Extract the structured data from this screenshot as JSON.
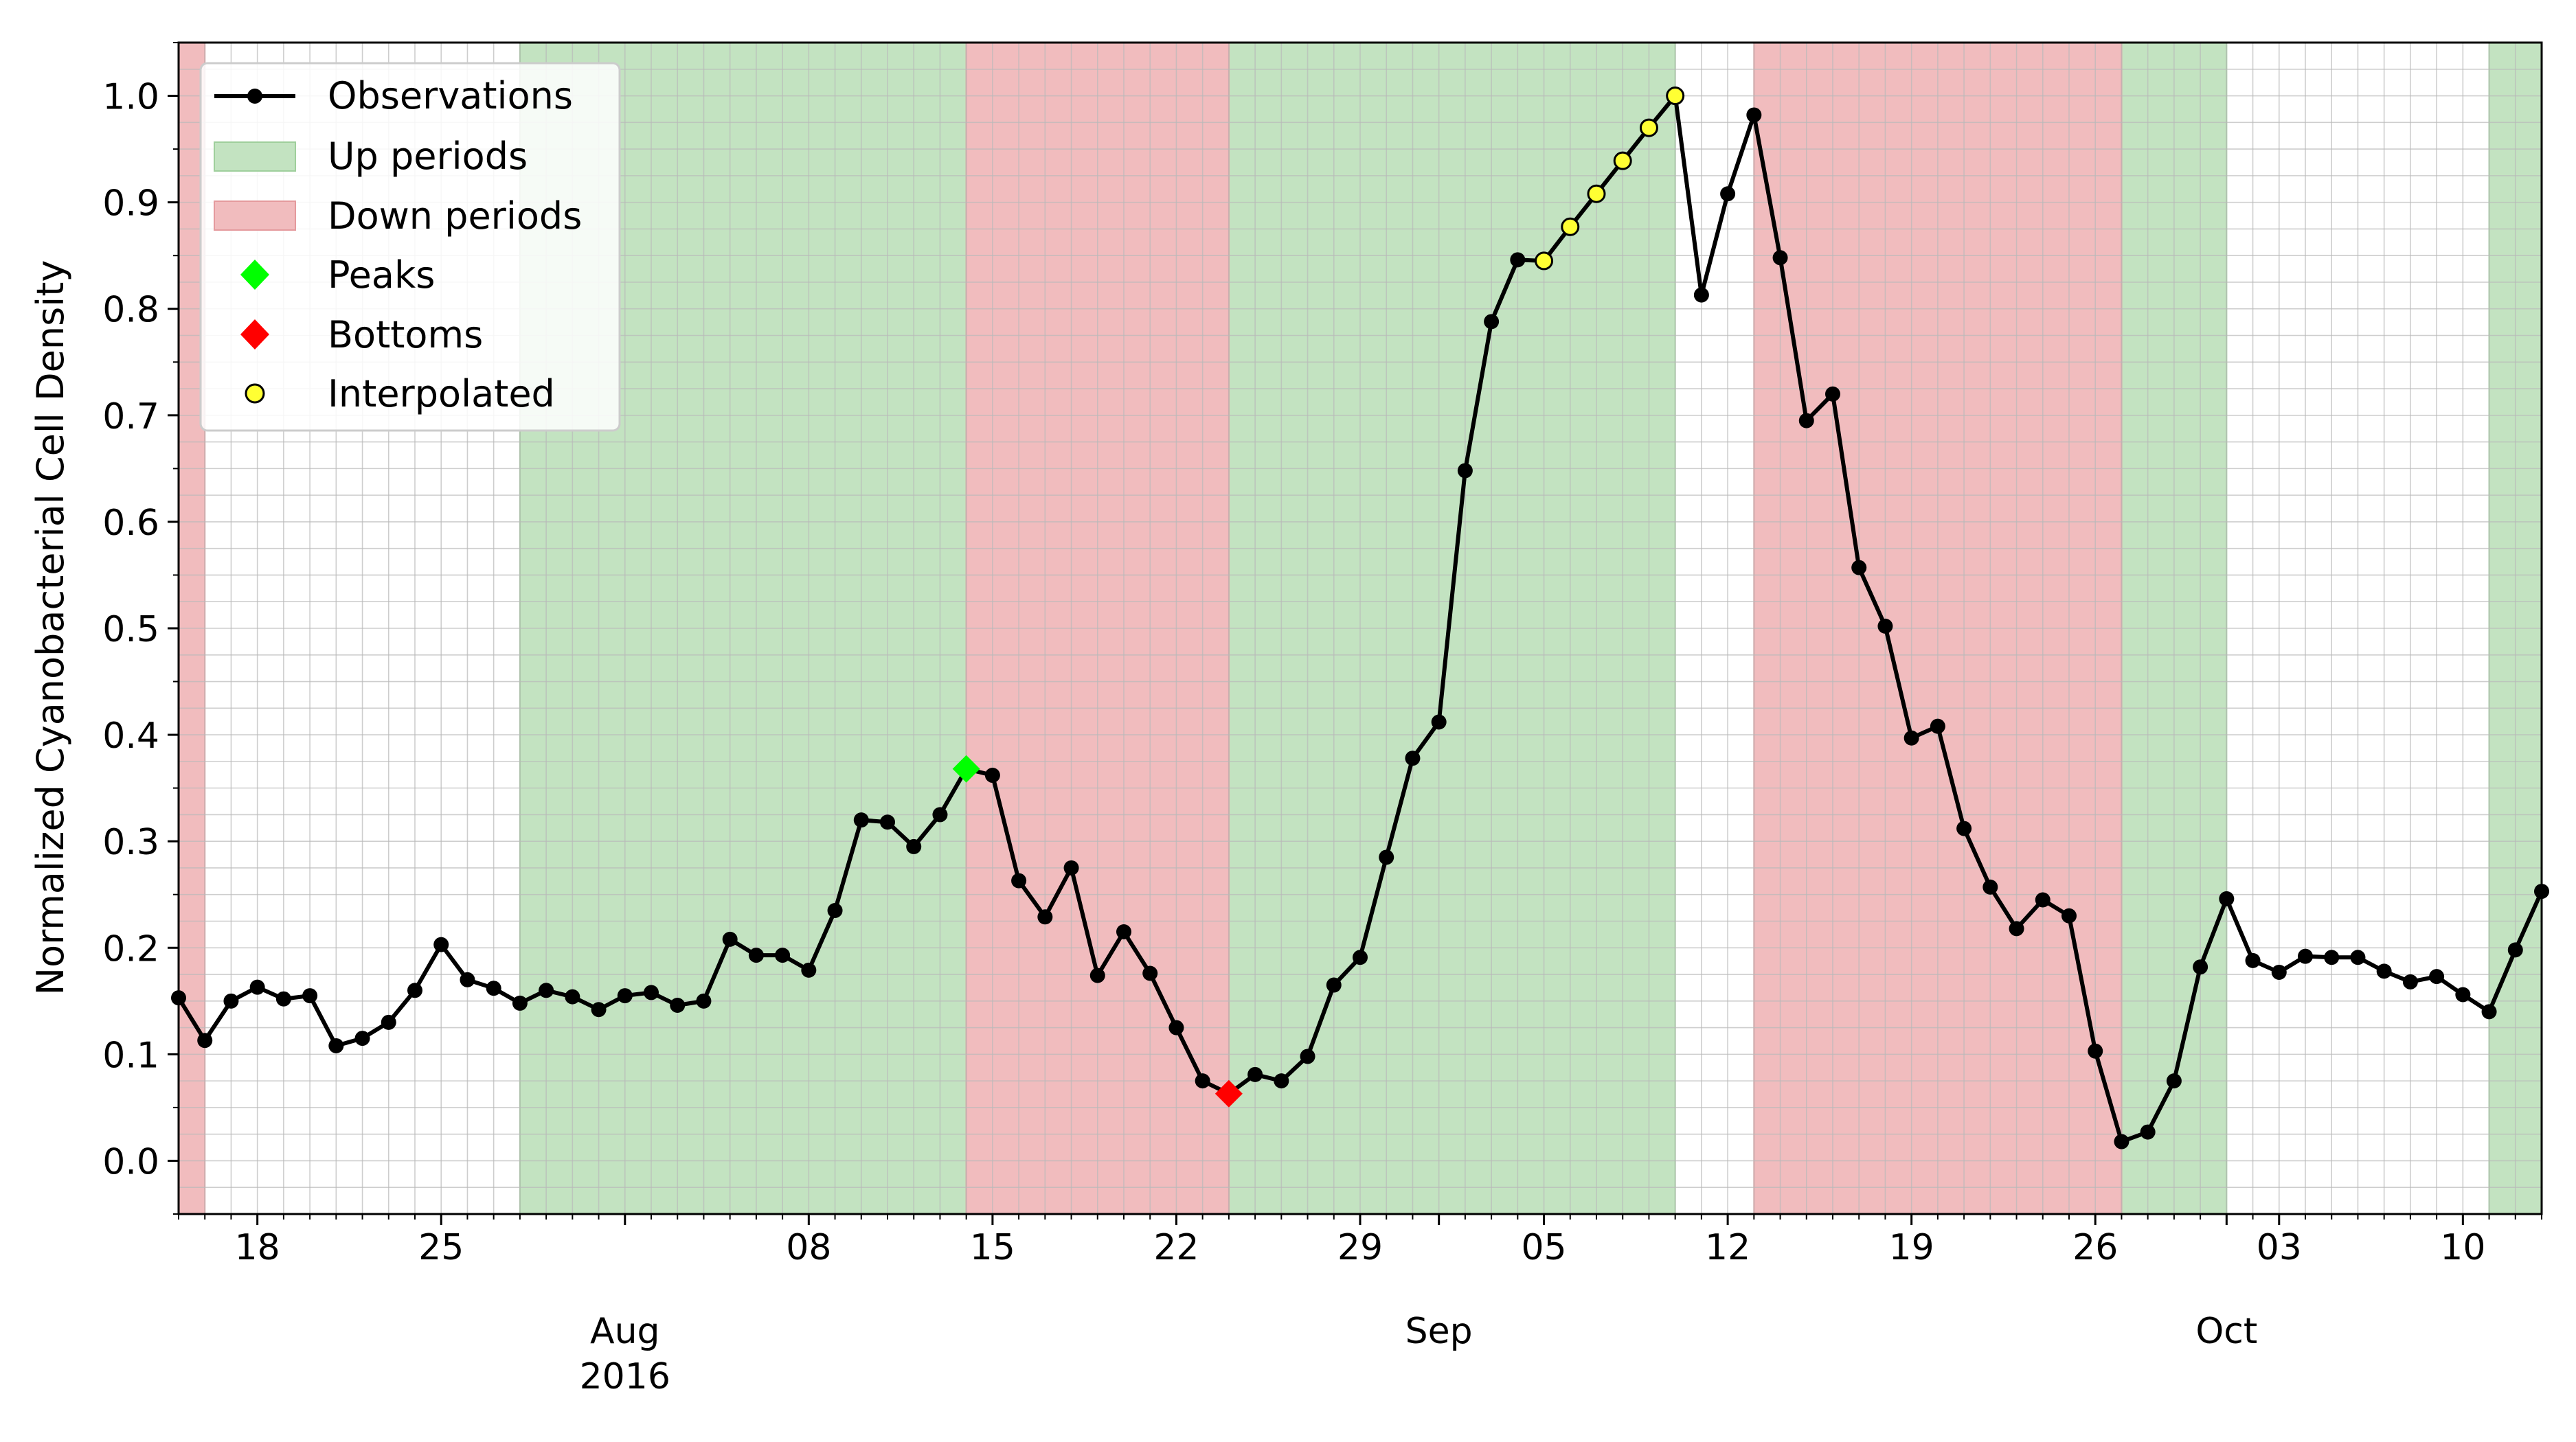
{
  "chart_data": {
    "type": "line",
    "title": "",
    "xlabel": "",
    "ylabel": "Normalized Cyanobacterial Cell Density",
    "ylim": [
      -0.05,
      1.05
    ],
    "xlim": [
      "2016-07-15",
      "2016-10-13"
    ],
    "grid": true,
    "legend_position": "top-left",
    "legend": {
      "observations": "Observations",
      "up": "Up periods",
      "down": "Down periods",
      "peaks": "Peaks",
      "bottoms": "Bottoms",
      "interpolated": "Interpolated"
    },
    "y_ticks": [
      "0.0",
      "0.1",
      "0.2",
      "0.3",
      "0.4",
      "0.5",
      "0.6",
      "0.7",
      "0.8",
      "0.9",
      "1.0"
    ],
    "x_ticks": [
      {
        "date": "2016-07-18",
        "label": "18"
      },
      {
        "date": "2016-07-25",
        "label": "25"
      },
      {
        "date": "2016-08-01",
        "label": ""
      },
      {
        "date": "2016-08-08",
        "label": "08"
      },
      {
        "date": "2016-08-15",
        "label": "15"
      },
      {
        "date": "2016-08-22",
        "label": "22"
      },
      {
        "date": "2016-08-29",
        "label": "29"
      },
      {
        "date": "2016-09-01",
        "label": ""
      },
      {
        "date": "2016-09-05",
        "label": "05"
      },
      {
        "date": "2016-09-12",
        "label": "12"
      },
      {
        "date": "2016-09-19",
        "label": "19"
      },
      {
        "date": "2016-09-26",
        "label": "26"
      },
      {
        "date": "2016-10-01",
        "label": ""
      },
      {
        "date": "2016-10-03",
        "label": "03"
      },
      {
        "date": "2016-10-10",
        "label": "10"
      }
    ],
    "month_labels": [
      {
        "date": "2016-08-01",
        "month": "Aug",
        "year": "2016"
      },
      {
        "date": "2016-09-01",
        "month": "Sep",
        "year": ""
      },
      {
        "date": "2016-10-01",
        "month": "Oct",
        "year": ""
      }
    ],
    "up_periods": [
      [
        "2016-07-28",
        "2016-08-14"
      ],
      [
        "2016-08-24",
        "2016-09-10"
      ],
      [
        "2016-09-27",
        "2016-10-01"
      ],
      [
        "2016-10-11",
        "2016-10-13"
      ]
    ],
    "down_periods": [
      [
        "2016-07-15",
        "2016-07-16"
      ],
      [
        "2016-08-14",
        "2016-08-24"
      ],
      [
        "2016-09-13",
        "2016-09-27"
      ]
    ],
    "observations": {
      "start_date": "2016-07-15",
      "step_days": 1,
      "values": [
        0.153,
        0.113,
        0.15,
        0.163,
        0.152,
        0.155,
        0.108,
        0.115,
        0.13,
        0.16,
        0.203,
        0.17,
        0.162,
        0.148,
        0.16,
        0.154,
        0.142,
        0.155,
        0.158,
        0.146,
        0.15,
        0.208,
        0.193,
        0.193,
        0.179,
        0.235,
        0.32,
        0.318,
        0.295,
        0.325,
        0.368,
        0.362,
        0.263,
        0.229,
        0.275,
        0.174,
        0.215,
        0.176,
        0.125,
        0.075,
        0.063,
        0.081,
        0.075,
        0.098,
        0.165,
        0.191,
        0.285,
        0.378,
        0.412,
        0.648,
        0.788,
        0.846,
        0.845,
        0.877,
        0.908,
        0.939,
        0.97,
        1.0,
        0.813,
        0.908,
        0.982,
        0.848,
        0.695,
        0.72,
        0.557,
        0.502,
        0.397,
        0.408,
        0.312,
        0.257,
        0.218,
        0.245,
        0.23,
        0.103,
        0.018,
        0.027,
        0.075,
        0.182,
        0.246,
        0.188,
        0.177,
        0.192,
        0.191,
        0.191,
        0.178,
        0.168,
        0.173,
        0.156,
        0.14,
        0.198,
        0.253
      ]
    },
    "interpolated_dates": [
      "2016-09-05",
      "2016-09-06",
      "2016-09-07",
      "2016-09-08",
      "2016-09-09",
      "2016-09-10"
    ],
    "peaks": [
      {
        "date": "2016-08-14",
        "value": 0.368
      }
    ],
    "bottoms": [
      {
        "date": "2016-08-24",
        "value": 0.063
      }
    ],
    "colors": {
      "line": "#000000",
      "up_fill": "#c3e3c1",
      "down_fill": "#f1bcbe",
      "peak": "#00ff00",
      "bottom": "#ff0000",
      "interpolated": "#ffff33",
      "grid": "#cccccc"
    }
  }
}
